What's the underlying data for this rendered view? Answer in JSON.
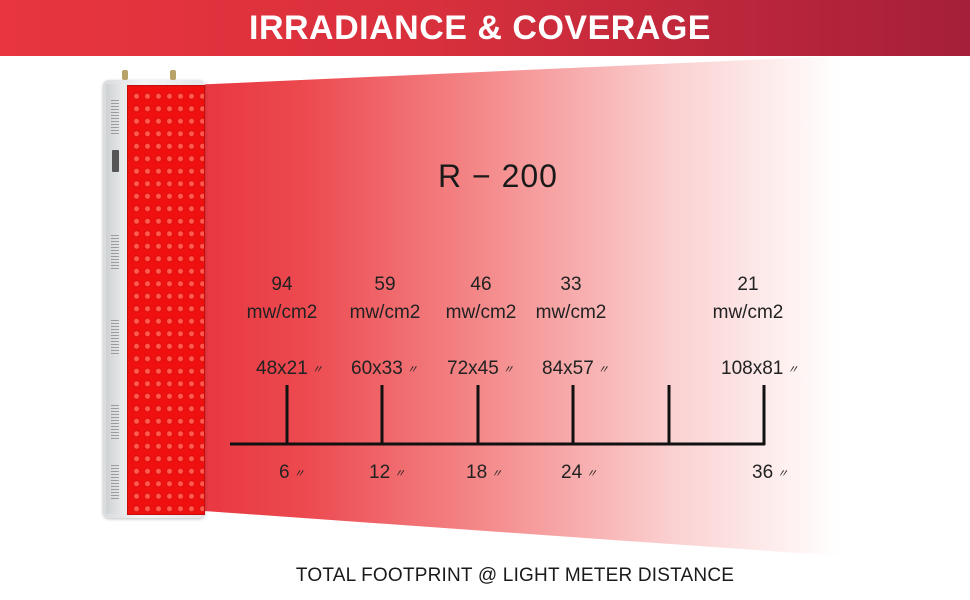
{
  "banner": {
    "title": "IRRADIANCE & COVERAGE",
    "color_left": "#e8353f",
    "color_right": "#a51f3a"
  },
  "model": "R − 200",
  "irradiance": [
    {
      "value": "94",
      "unit": "mw/cm2"
    },
    {
      "value": "59",
      "unit": "mw/cm2"
    },
    {
      "value": "46",
      "unit": "mw/cm2"
    },
    {
      "value": "33",
      "unit": "mw/cm2"
    },
    {
      "value": "21",
      "unit": "mw/cm2"
    }
  ],
  "coverage": [
    "48x21",
    "60x33",
    "72x45",
    "84x57",
    "108x81"
  ],
  "distances": [
    "6",
    "12",
    "18",
    "24",
    "36"
  ],
  "inch_mark": "〃",
  "footer": "TOTAL FOOTPRINT @ LIGHT METER DISTANCE",
  "colors": {
    "led": "#f01010",
    "beam": "#e8353f"
  }
}
